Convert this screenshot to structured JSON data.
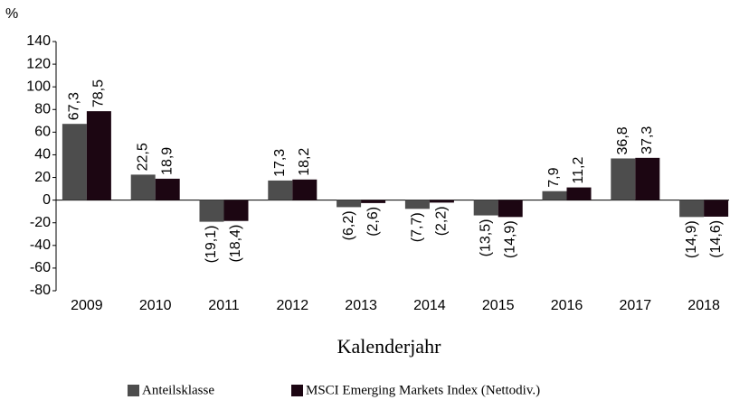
{
  "chart_data": {
    "type": "bar",
    "y_unit": "%",
    "x_label": "Kalenderjahr",
    "categories": [
      "2009",
      "2010",
      "2011",
      "2012",
      "2013",
      "2014",
      "2015",
      "2016",
      "2017",
      "2018"
    ],
    "series": [
      {
        "name": "Anteilsklasse",
        "color": "#4d4d4d",
        "values": [
          67.3,
          22.5,
          -19.1,
          17.3,
          -6.2,
          -7.7,
          -13.5,
          7.9,
          36.8,
          -14.9
        ],
        "value_labels": [
          "67,3",
          "22,5",
          "(19,1)",
          "17,3",
          "(6,2)",
          "(7,7)",
          "(13,5)",
          "7,9",
          "36,8",
          "(14,9)"
        ]
      },
      {
        "name": "MSCI Emerging Markets Index (Nettodiv.)",
        "color": "#1c0612",
        "values": [
          78.5,
          18.9,
          -18.4,
          18.2,
          -2.6,
          -2.2,
          -14.9,
          11.2,
          37.3,
          -14.6
        ],
        "value_labels": [
          "78,5",
          "18,9",
          "(18,4)",
          "18,2",
          "(2,6)",
          "(2,2)",
          "(14,9)",
          "11,2",
          "37,3",
          "(14,6)"
        ]
      }
    ],
    "ylim": [
      -80,
      140
    ],
    "yticks": [
      -80,
      -60,
      -40,
      -20,
      0,
      20,
      40,
      60,
      80,
      100,
      120,
      140
    ],
    "grid": false,
    "legend": "bottom"
  }
}
